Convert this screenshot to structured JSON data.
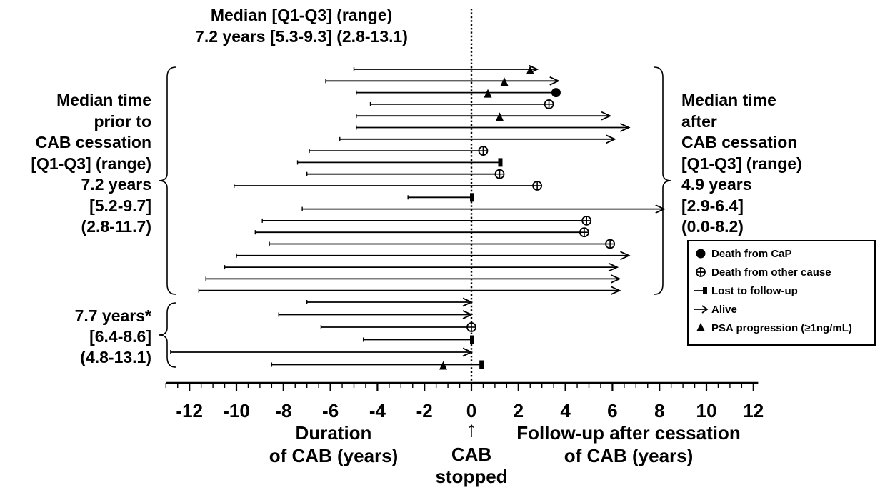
{
  "top_annotation": {
    "line1": "Median [Q1-Q3] (range)",
    "line2": "7.2 years [5.3-9.3] (2.8-13.1)"
  },
  "left_annotation": {
    "lines": [
      "Median time",
      "prior to",
      "CAB cessation",
      "[Q1-Q3] (range)",
      "7.2 years",
      "[5.2-9.7]",
      "(2.8-11.7)"
    ]
  },
  "right_annotation": {
    "lines": [
      "Median time",
      "after",
      "CAB cessation",
      "[Q1-Q3] (range)",
      "4.9 years",
      "[2.9-6.4]",
      "(0.0-8.2)"
    ]
  },
  "lower_annotation": {
    "lines": [
      "7.7 years*",
      "[6.4-8.6]",
      "(4.8-13.1)"
    ]
  },
  "x_label_left": "Duration\nof CAB (years)",
  "x_label_right": "Follow-up after cessation\nof CAB (years)",
  "center_label": "CAB\nstopped",
  "center_arrow": "↑",
  "legend": [
    {
      "symbol": "dot",
      "label": "Death from CaP"
    },
    {
      "symbol": "crossed-circle",
      "label": "Death from other cause"
    },
    {
      "symbol": "bar-end",
      "label": "Lost to follow-up"
    },
    {
      "symbol": "arrow",
      "label": "Alive"
    },
    {
      "symbol": "triangle",
      "label": "PSA progression (≥1ng/mL)"
    }
  ],
  "chart_data": {
    "type": "timeline",
    "xlim": [
      -13,
      12.2
    ],
    "x_ticks": [
      -12,
      -10,
      -8,
      -6,
      -4,
      -2,
      0,
      2,
      4,
      6,
      8,
      10,
      12
    ],
    "reference_line_x": 0,
    "group1": [
      {
        "start": -5.0,
        "end": 2.8,
        "endpoint": "alive",
        "psa": 2.5
      },
      {
        "start": -6.2,
        "end": 3.7,
        "endpoint": "alive",
        "psa": 1.4
      },
      {
        "start": -4.9,
        "end": 3.6,
        "endpoint": "death_cap",
        "psa": 0.7
      },
      {
        "start": -4.3,
        "end": 3.3,
        "endpoint": "death_other"
      },
      {
        "start": -4.9,
        "end": 5.9,
        "endpoint": "alive",
        "psa": 1.2
      },
      {
        "start": -4.9,
        "end": 6.7,
        "endpoint": "alive"
      },
      {
        "start": -5.6,
        "end": 6.1,
        "endpoint": "alive"
      },
      {
        "start": -6.9,
        "end": 0.5,
        "endpoint": "death_other"
      },
      {
        "start": -7.4,
        "end": 1.2,
        "endpoint": "lost"
      },
      {
        "start": -7.0,
        "end": 1.2,
        "endpoint": "death_other"
      },
      {
        "start": -10.1,
        "end": 2.8,
        "endpoint": "death_other"
      },
      {
        "start": -2.7,
        "end": 0.0,
        "endpoint": "lost"
      },
      {
        "start": -7.2,
        "end": 8.2,
        "endpoint": "alive"
      },
      {
        "start": -8.9,
        "end": 4.9,
        "endpoint": "death_other"
      },
      {
        "start": -9.2,
        "end": 4.8,
        "endpoint": "death_other"
      },
      {
        "start": -8.6,
        "end": 5.9,
        "endpoint": "death_other"
      },
      {
        "start": -10.0,
        "end": 6.7,
        "endpoint": "alive"
      },
      {
        "start": -10.5,
        "end": 6.2,
        "endpoint": "alive"
      },
      {
        "start": -11.3,
        "end": 6.3,
        "endpoint": "alive"
      },
      {
        "start": -11.6,
        "end": 6.3,
        "endpoint": "alive"
      }
    ],
    "group2": [
      {
        "start": -7.0,
        "end": 0.0,
        "endpoint": "alive"
      },
      {
        "start": -8.2,
        "end": 0.0,
        "endpoint": "alive"
      },
      {
        "start": -6.4,
        "end": 0.0,
        "endpoint": "death_other"
      },
      {
        "start": -4.6,
        "end": 0.0,
        "endpoint": "lost"
      },
      {
        "start": -12.8,
        "end": 0.0,
        "endpoint": "alive"
      },
      {
        "start": -8.5,
        "end": 0.4,
        "endpoint": "lost",
        "psa": -1.2
      }
    ]
  }
}
